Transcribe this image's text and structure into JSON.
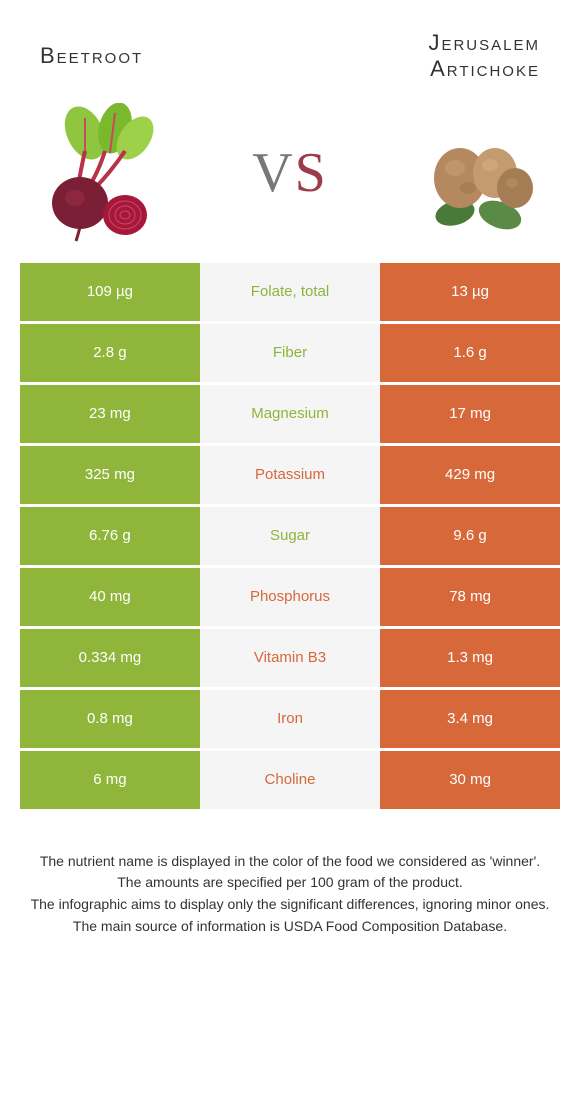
{
  "left_food": {
    "name": "Beetroot",
    "color": "#8fb53a"
  },
  "right_food": {
    "name": "Jerusalem Artichoke",
    "color": "#d6683a"
  },
  "vs_label": "VS",
  "mid_bg": "#f5f5f5",
  "rows": [
    {
      "left": "109 µg",
      "label": "Folate, total",
      "right": "13 µg",
      "winner": "left"
    },
    {
      "left": "2.8 g",
      "label": "Fiber",
      "right": "1.6 g",
      "winner": "left"
    },
    {
      "left": "23 mg",
      "label": "Magnesium",
      "right": "17 mg",
      "winner": "left"
    },
    {
      "left": "325 mg",
      "label": "Potassium",
      "right": "429 mg",
      "winner": "right"
    },
    {
      "left": "6.76 g",
      "label": "Sugar",
      "right": "9.6 g",
      "winner": "left"
    },
    {
      "left": "40 mg",
      "label": "Phosphorus",
      "right": "78 mg",
      "winner": "right"
    },
    {
      "left": "0.334 mg",
      "label": "Vitamin B3",
      "right": "1.3 mg",
      "winner": "right"
    },
    {
      "left": "0.8 mg",
      "label": "Iron",
      "right": "3.4 mg",
      "winner": "right"
    },
    {
      "left": "6 mg",
      "label": "Choline",
      "right": "30 mg",
      "winner": "right"
    }
  ],
  "footer": [
    "The nutrient name is displayed in the color of the food we considered as 'winner'.",
    "The amounts are specified per 100 gram of the product.",
    "The infographic aims to display only the significant differences, ignoring minor ones.",
    "The main source of information is USDA Food Composition Database."
  ]
}
